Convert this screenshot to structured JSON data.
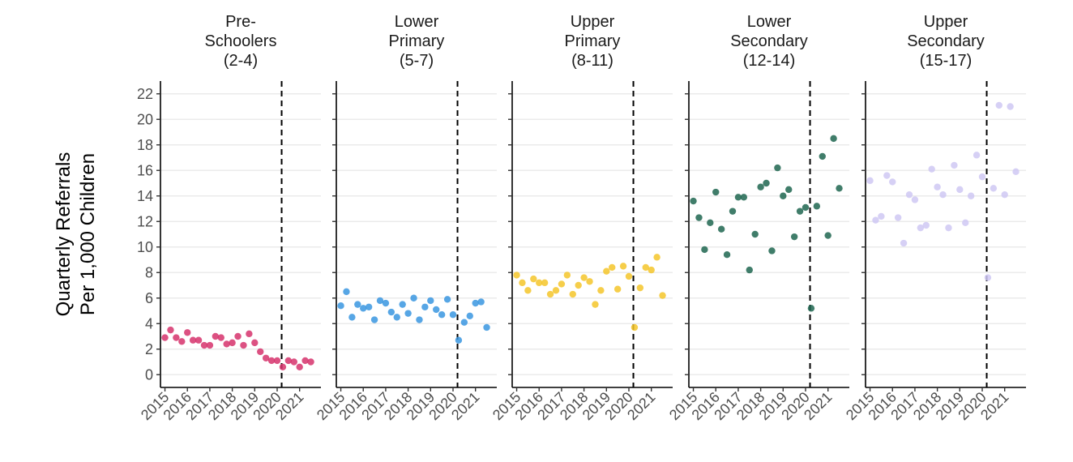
{
  "chart_data": {
    "type": "scatter",
    "ylabel": [
      "Quarterly Referrals",
      "Per 1,000 Children"
    ],
    "ylim": [
      -1,
      23
    ],
    "y_ticks": [
      0,
      2,
      4,
      6,
      8,
      10,
      12,
      14,
      16,
      18,
      20,
      22
    ],
    "x_ticks": [
      "2015",
      "2016",
      "2017",
      "2018",
      "2019",
      "2020",
      "2021"
    ],
    "xlim": [
      2014.8,
      2021.95
    ],
    "cutoff_x": 2020.2,
    "grid": true,
    "legend": "none",
    "panels": [
      {
        "title": [
          "Pre-",
          "Schoolers",
          "(2-4)"
        ],
        "color": "#D6336C",
        "points": [
          [
            2015.0,
            2.9
          ],
          [
            2015.25,
            3.5
          ],
          [
            2015.5,
            2.9
          ],
          [
            2015.75,
            2.6
          ],
          [
            2016.0,
            3.3
          ],
          [
            2016.25,
            2.7
          ],
          [
            2016.5,
            2.7
          ],
          [
            2016.75,
            2.3
          ],
          [
            2017.0,
            2.3
          ],
          [
            2017.25,
            3.0
          ],
          [
            2017.5,
            2.9
          ],
          [
            2017.75,
            2.4
          ],
          [
            2018.0,
            2.5
          ],
          [
            2018.25,
            3.0
          ],
          [
            2018.5,
            2.3
          ],
          [
            2018.75,
            3.2
          ],
          [
            2019.0,
            2.5
          ],
          [
            2019.25,
            1.8
          ],
          [
            2019.5,
            1.3
          ],
          [
            2019.75,
            1.1
          ],
          [
            2020.0,
            1.1
          ],
          [
            2020.25,
            0.6
          ],
          [
            2020.5,
            1.1
          ],
          [
            2020.75,
            1.0
          ],
          [
            2021.0,
            0.6
          ],
          [
            2021.25,
            1.1
          ],
          [
            2021.5,
            1.0
          ]
        ]
      },
      {
        "title": [
          "Lower",
          "Primary",
          "(5-7)"
        ],
        "color": "#3A96E0",
        "points": [
          [
            2015.0,
            5.4
          ],
          [
            2015.25,
            6.5
          ],
          [
            2015.5,
            4.5
          ],
          [
            2015.75,
            5.5
          ],
          [
            2016.0,
            5.2
          ],
          [
            2016.25,
            5.3
          ],
          [
            2016.5,
            4.3
          ],
          [
            2016.75,
            5.8
          ],
          [
            2017.0,
            5.6
          ],
          [
            2017.25,
            4.9
          ],
          [
            2017.5,
            4.5
          ],
          [
            2017.75,
            5.5
          ],
          [
            2018.0,
            4.8
          ],
          [
            2018.25,
            6.0
          ],
          [
            2018.5,
            4.3
          ],
          [
            2018.75,
            5.3
          ],
          [
            2019.0,
            5.8
          ],
          [
            2019.25,
            5.1
          ],
          [
            2019.5,
            4.7
          ],
          [
            2019.75,
            5.9
          ],
          [
            2020.0,
            4.7
          ],
          [
            2020.25,
            2.7
          ],
          [
            2020.5,
            4.1
          ],
          [
            2020.75,
            4.6
          ],
          [
            2021.0,
            5.6
          ],
          [
            2021.25,
            5.7
          ],
          [
            2021.5,
            3.7
          ]
        ]
      },
      {
        "title": [
          "Upper",
          "Primary",
          "(8-11)"
        ],
        "color": "#F5C52A",
        "points": [
          [
            2015.0,
            7.8
          ],
          [
            2015.25,
            7.2
          ],
          [
            2015.5,
            6.6
          ],
          [
            2015.75,
            7.5
          ],
          [
            2016.0,
            7.2
          ],
          [
            2016.25,
            7.2
          ],
          [
            2016.5,
            6.3
          ],
          [
            2016.75,
            6.6
          ],
          [
            2017.0,
            7.1
          ],
          [
            2017.25,
            7.8
          ],
          [
            2017.5,
            6.3
          ],
          [
            2017.75,
            7.0
          ],
          [
            2018.0,
            7.6
          ],
          [
            2018.25,
            7.3
          ],
          [
            2018.5,
            5.5
          ],
          [
            2018.75,
            6.6
          ],
          [
            2019.0,
            8.1
          ],
          [
            2019.25,
            8.4
          ],
          [
            2019.5,
            6.7
          ],
          [
            2019.75,
            8.5
          ],
          [
            2020.0,
            7.7
          ],
          [
            2020.25,
            3.7
          ],
          [
            2020.5,
            6.8
          ],
          [
            2020.75,
            8.4
          ],
          [
            2021.0,
            8.2
          ],
          [
            2021.25,
            9.2
          ],
          [
            2021.5,
            6.2
          ]
        ]
      },
      {
        "title": [
          "Lower",
          "Secondary",
          "(12-14)"
        ],
        "color": "#1F6650",
        "points": [
          [
            2015.0,
            13.6
          ],
          [
            2015.25,
            12.3
          ],
          [
            2015.5,
            9.8
          ],
          [
            2015.75,
            11.9
          ],
          [
            2016.0,
            14.3
          ],
          [
            2016.25,
            11.4
          ],
          [
            2016.5,
            9.4
          ],
          [
            2016.75,
            12.8
          ],
          [
            2017.0,
            13.9
          ],
          [
            2017.25,
            13.9
          ],
          [
            2017.5,
            8.2
          ],
          [
            2017.75,
            11.0
          ],
          [
            2018.0,
            14.7
          ],
          [
            2018.25,
            15.0
          ],
          [
            2018.5,
            9.7
          ],
          [
            2018.75,
            16.2
          ],
          [
            2019.0,
            14.0
          ],
          [
            2019.25,
            14.5
          ],
          [
            2019.5,
            10.8
          ],
          [
            2019.75,
            12.8
          ],
          [
            2020.0,
            13.1
          ],
          [
            2020.25,
            5.2
          ],
          [
            2020.5,
            13.2
          ],
          [
            2020.75,
            17.1
          ],
          [
            2021.0,
            10.9
          ],
          [
            2021.25,
            18.5
          ],
          [
            2021.5,
            14.6
          ]
        ]
      },
      {
        "title": [
          "Upper",
          "Secondary",
          "(15-17)"
        ],
        "color": "#CFC8F3",
        "points": [
          [
            2015.0,
            15.2
          ],
          [
            2015.25,
            12.1
          ],
          [
            2015.5,
            12.4
          ],
          [
            2015.75,
            15.6
          ],
          [
            2016.0,
            15.1
          ],
          [
            2016.25,
            12.3
          ],
          [
            2016.5,
            10.3
          ],
          [
            2016.75,
            14.1
          ],
          [
            2017.0,
            13.7
          ],
          [
            2017.25,
            11.5
          ],
          [
            2017.5,
            11.7
          ],
          [
            2017.75,
            16.1
          ],
          [
            2018.0,
            14.7
          ],
          [
            2018.25,
            14.1
          ],
          [
            2018.5,
            11.5
          ],
          [
            2018.75,
            16.4
          ],
          [
            2019.0,
            14.5
          ],
          [
            2019.25,
            11.9
          ],
          [
            2019.5,
            14.0
          ],
          [
            2019.75,
            17.2
          ],
          [
            2020.0,
            15.5
          ],
          [
            2020.25,
            7.6
          ],
          [
            2020.5,
            14.6
          ],
          [
            2020.75,
            21.1
          ],
          [
            2021.0,
            14.1
          ],
          [
            2021.25,
            21.0
          ],
          [
            2021.5,
            15.9
          ]
        ]
      }
    ]
  }
}
